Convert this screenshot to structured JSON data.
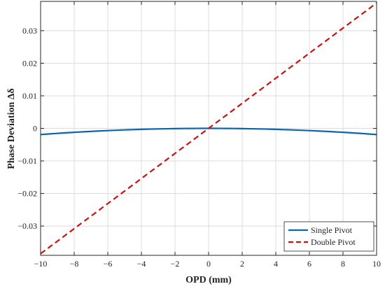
{
  "chart_data": {
    "type": "line",
    "title": "",
    "xlabel": "OPD (mm)",
    "ylabel": "Phase Deviation Δδ",
    "xlim": [
      -10,
      10
    ],
    "ylim": [
      -0.039,
      0.039
    ],
    "xticks": [
      -10,
      -8,
      -6,
      -4,
      -2,
      0,
      2,
      4,
      6,
      8,
      10
    ],
    "yticks": [
      -0.03,
      -0.02,
      -0.01,
      0,
      0.01,
      0.02,
      0.03
    ],
    "xtick_labels": [
      "−10",
      "−8",
      "−6",
      "−4",
      "−2",
      "0",
      "2",
      "4",
      "6",
      "8",
      "10"
    ],
    "ytick_labels": [
      "−0.03",
      "−0.02",
      "−0.01",
      "0",
      "0.01",
      "0.02",
      "0.03"
    ],
    "grid": true,
    "legend_position": "bottom-right",
    "series": [
      {
        "name": "Single Pivot",
        "color": "#0b64b0",
        "style": "solid",
        "x": [
          -10,
          -8,
          -6,
          -4,
          -2,
          0,
          2,
          4,
          6,
          8,
          10
        ],
        "y": [
          -0.0019,
          -0.0012,
          -0.0007,
          -0.0003,
          -0.0001,
          0,
          -0.0001,
          -0.0003,
          -0.0007,
          -0.0012,
          -0.0019
        ]
      },
      {
        "name": "Double Pivot",
        "color": "#cc1111",
        "style": "dashed",
        "x": [
          -10,
          -5,
          0,
          5,
          10
        ],
        "y": [
          -0.0385,
          -0.01925,
          0,
          0.01925,
          0.0385
        ]
      }
    ]
  }
}
